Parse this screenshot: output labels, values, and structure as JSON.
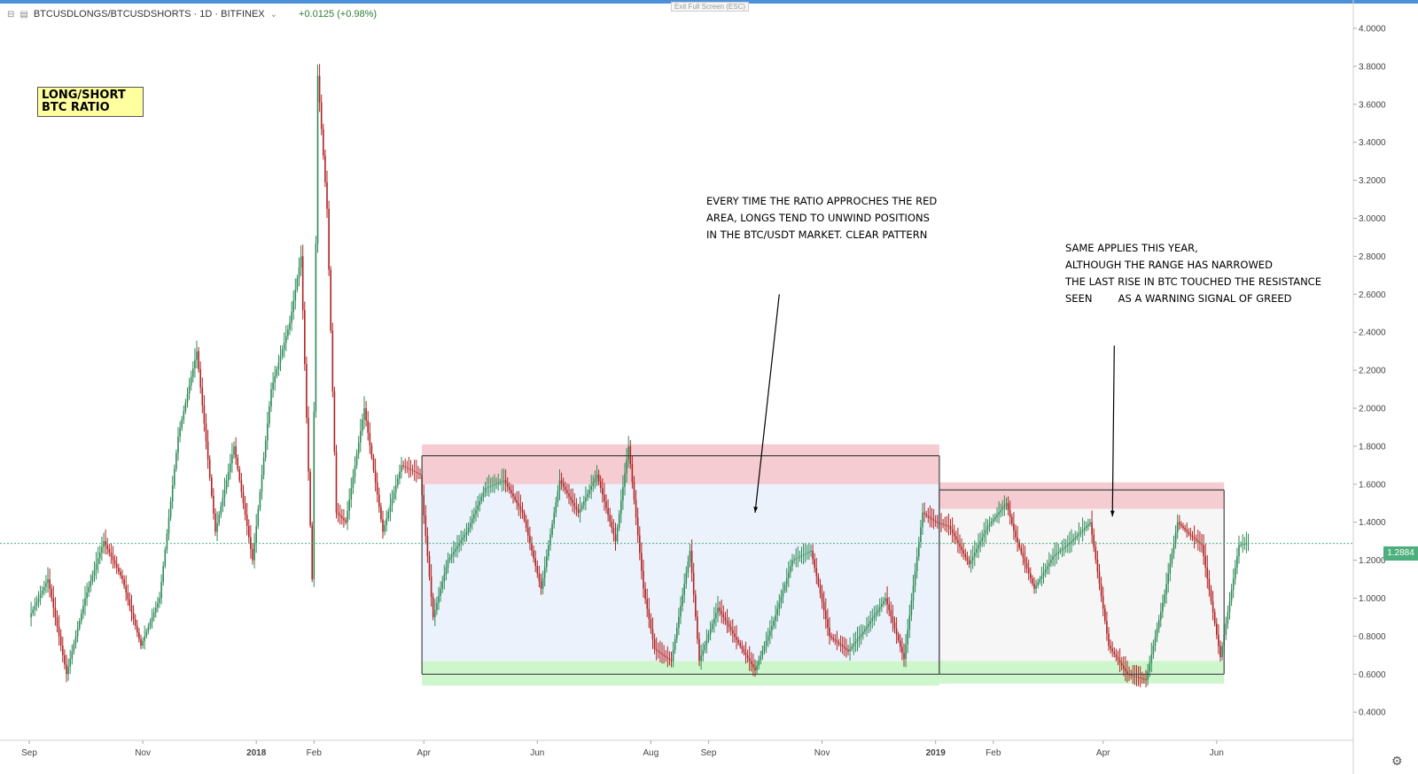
{
  "header": {
    "symbol": "BTCUSDLONGS/BTCUSDSHORTS · 1D · BITFINEX",
    "change": "+0.0125 (+0.98%)",
    "exit_fullscreen": "Exit Full Screen (ESC)"
  },
  "title_box": {
    "line1": "LONG/SHORT",
    "line2": "BTC RATIO"
  },
  "annotation1": {
    "line1": "EVERY TIME THE RATIO APPROCHES THE RED",
    "line2": "AREA, LONGS TEND TO UNWIND POSITIONS",
    "line3": "IN THE BTC/USDT MARKET. CLEAR PATTERN"
  },
  "annotation2": {
    "line1": "SAME APPLIES THIS YEAR,",
    "line2": "ALTHOUGH THE RANGE HAS NARROWED",
    "line3": "THE LAST RISE IN BTC TOUCHED THE RESISTANCE",
    "line4": "SEEN        AS A WARNING SIGNAL OF GREED"
  },
  "current_price_label": "1.2884",
  "colors": {
    "up": "#2e8b57",
    "down": "#b22222",
    "resistance_zone": "#f4c7cc",
    "support_zone": "#c8f5c8",
    "range_2018": "#eaf1fb",
    "range_2019": "#f5f5f5",
    "price_line": "#4caf7d"
  },
  "chart_data": {
    "type": "line",
    "title": "LONG/SHORT BTC RATIO",
    "ylim": [
      0.3,
      4.1
    ],
    "y_ticks": [
      "0.4000",
      "0.6000",
      "0.8000",
      "1.0000",
      "1.2000",
      "1.4000",
      "1.6000",
      "1.8000",
      "2.0000",
      "2.2000",
      "2.4000",
      "2.6000",
      "2.8000",
      "3.0000",
      "3.2000",
      "3.4000",
      "3.6000",
      "3.8000",
      "4.0000"
    ],
    "x_ticks": [
      "Sep",
      "Nov",
      "2018",
      "Feb",
      "Apr",
      "Jun",
      "Aug",
      "Sep",
      "Nov",
      "2019",
      "Feb",
      "Apr",
      "Jun"
    ],
    "x_tick_days": [
      0,
      61,
      122,
      153,
      212,
      273,
      334,
      365,
      426,
      487,
      518,
      577,
      638
    ],
    "grid": false,
    "current_value": 1.2884,
    "series": [
      {
        "x": [
          0,
          10,
          20,
          30,
          40,
          50,
          60,
          70,
          80,
          90,
          100,
          110,
          120,
          130,
          140,
          146,
          152,
          155,
          160,
          165,
          170,
          180,
          190,
          200,
          210,
          217,
          225,
          235,
          245,
          255,
          265,
          275,
          285,
          295,
          305,
          315,
          322,
          330,
          336,
          345,
          355,
          360,
          370,
          380,
          390,
          400,
          410,
          420,
          430,
          440,
          450,
          460,
          470,
          480,
          487,
          494,
          505,
          515,
          525,
          530,
          540,
          550,
          560,
          570,
          580,
          590,
          600,
          610,
          617,
          625,
          630,
          640,
          650,
          655
        ],
        "values": [
          0.9,
          1.1,
          0.6,
          1.0,
          1.3,
          1.1,
          0.75,
          1.0,
          1.85,
          2.3,
          1.35,
          1.8,
          1.2,
          2.1,
          2.45,
          2.8,
          1.1,
          3.75,
          3.05,
          1.45,
          1.4,
          2.0,
          1.35,
          1.7,
          1.65,
          0.9,
          1.2,
          1.35,
          1.58,
          1.62,
          1.45,
          1.05,
          1.62,
          1.45,
          1.65,
          1.3,
          1.8,
          1.05,
          0.73,
          0.67,
          1.25,
          0.67,
          0.95,
          0.78,
          0.62,
          0.88,
          1.2,
          1.25,
          0.8,
          0.72,
          0.85,
          1.0,
          0.68,
          1.45,
          1.4,
          1.38,
          1.18,
          1.38,
          1.5,
          1.32,
          1.05,
          1.22,
          1.3,
          1.4,
          0.75,
          0.6,
          0.57,
          1.02,
          1.4,
          1.32,
          1.28,
          0.69,
          1.28,
          1.29
        ]
      }
    ],
    "zones": [
      {
        "name": "resistance 2018",
        "x0": 211,
        "x1": 489,
        "y0": 1.6,
        "y1": 1.81
      },
      {
        "name": "support 2018",
        "x0": 211,
        "x1": 489,
        "y0": 0.54,
        "y1": 0.67
      },
      {
        "name": "range 2018",
        "x0": 211,
        "x1": 489,
        "y0": 0.67,
        "y1": 1.6
      },
      {
        "name": "resistance 2019",
        "x0": 489,
        "x1": 642,
        "y0": 1.47,
        "y1": 1.61
      },
      {
        "name": "support 2019",
        "x0": 489,
        "x1": 642,
        "y0": 0.55,
        "y1": 0.67
      },
      {
        "name": "range 2019",
        "x0": 489,
        "x1": 642,
        "y0": 0.67,
        "y1": 1.47
      }
    ],
    "levels": [
      {
        "name": "top 2018",
        "x0": 211,
        "x1": 489,
        "y": 1.75
      },
      {
        "name": "bottom 2018",
        "x0": 211,
        "x1": 489,
        "y": 0.6
      },
      {
        "name": "top 2019",
        "x0": 489,
        "x1": 642,
        "y": 1.57
      },
      {
        "name": "bottom 2019",
        "x0": 489,
        "x1": 642,
        "y": 0.6
      }
    ],
    "arrows": [
      {
        "from": [
          403,
          2.6
        ],
        "to": [
          390,
          1.45
        ]
      },
      {
        "from": [
          583,
          2.33
        ],
        "to": [
          582,
          1.43
        ]
      }
    ]
  }
}
